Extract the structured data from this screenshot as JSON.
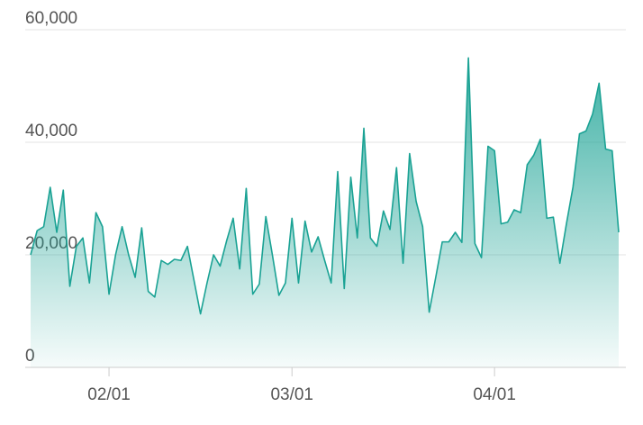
{
  "chart_data": {
    "type": "area",
    "categories": [
      null,
      null,
      null,
      null,
      null,
      null,
      null,
      null,
      null,
      null,
      null,
      null,
      "02/01",
      null,
      null,
      null,
      null,
      null,
      null,
      null,
      null,
      null,
      null,
      null,
      null,
      null,
      null,
      null,
      null,
      null,
      null,
      null,
      null,
      null,
      null,
      null,
      null,
      null,
      null,
      null,
      "03/01",
      null,
      null,
      null,
      null,
      null,
      null,
      null,
      null,
      null,
      null,
      null,
      null,
      null,
      null,
      null,
      null,
      null,
      null,
      null,
      null,
      null,
      null,
      null,
      null,
      null,
      null,
      null,
      null,
      null,
      null,
      "04/01",
      null,
      null,
      null,
      null,
      null,
      null,
      null,
      null,
      null,
      null,
      null,
      null,
      null,
      null,
      null,
      null,
      null,
      null,
      null
    ],
    "values": [
      20000,
      24300,
      25000,
      32000,
      24000,
      31500,
      14400,
      21500,
      23000,
      15000,
      27500,
      25000,
      13000,
      20000,
      25000,
      20000,
      16000,
      24800,
      13500,
      12500,
      19000,
      18300,
      19200,
      19000,
      21500,
      15500,
      9500,
      15000,
      20000,
      18000,
      22500,
      26500,
      17500,
      31800,
      13000,
      14800,
      26800,
      20000,
      12800,
      15000,
      26500,
      15000,
      26000,
      20500,
      23200,
      19000,
      15000,
      34800,
      14000,
      33800,
      23000,
      42500,
      23000,
      21500,
      27800,
      24500,
      35500,
      18500,
      38000,
      29500,
      25000,
      9800,
      16000,
      22300,
      22300,
      24000,
      22200,
      55000,
      22000,
      19500,
      39300,
      38500,
      25500,
      25800,
      28000,
      27500,
      36000,
      37700,
      40500,
      26500,
      26700,
      18500,
      25500,
      32000,
      41500,
      42000,
      45000,
      50500,
      38800,
      38500,
      24000
    ],
    "color": "#1aa294",
    "ylim": [
      0,
      60000
    ],
    "yticks": [
      0,
      {
        "value": 20000,
        "label": "20,000"
      },
      {
        "value": 40000,
        "label": "40,000"
      },
      {
        "value": 60000,
        "label": "60,000"
      }
    ],
    "grid": true
  }
}
